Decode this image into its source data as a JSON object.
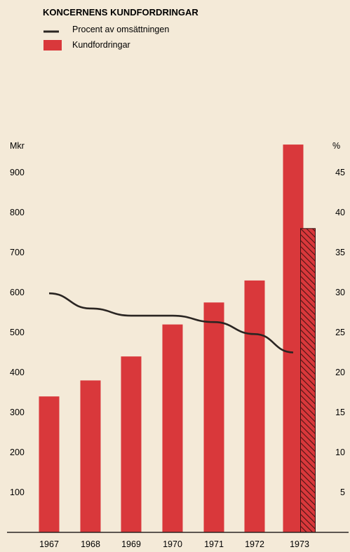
{
  "chart_data": {
    "type": "bar",
    "title": "KONCERNENS KUNDFORDRINGAR",
    "categories": [
      "1967",
      "1968",
      "1969",
      "1970",
      "1971",
      "1972",
      "1973"
    ],
    "series": [
      {
        "name": "Kundfordringar",
        "kind": "bar",
        "axis": "left",
        "values": [
          340,
          380,
          440,
          520,
          575,
          630,
          970
        ]
      },
      {
        "name": "",
        "kind": "bar-hatched",
        "axis": "left",
        "values": [
          null,
          null,
          null,
          null,
          null,
          null,
          760
        ]
      },
      {
        "name": "Procent av omsättningen",
        "kind": "line",
        "axis": "right",
        "values": [
          29.9,
          28.0,
          27.1,
          27.1,
          26.3,
          24.8,
          22.5
        ]
      }
    ],
    "ylabel": "Mkr",
    "ylim": [
      0,
      1000
    ],
    "yticks": [
      100,
      200,
      300,
      400,
      500,
      600,
      700,
      800,
      900
    ],
    "y2label": "%",
    "y2lim": [
      0,
      50
    ],
    "y2ticks": [
      5,
      10,
      15,
      20,
      25,
      30,
      35,
      40,
      45
    ],
    "grid": false,
    "legend_position": "top-left",
    "colors": {
      "bar": "#d9383b",
      "line": "#2a2522",
      "background": "#f4ead8"
    }
  }
}
